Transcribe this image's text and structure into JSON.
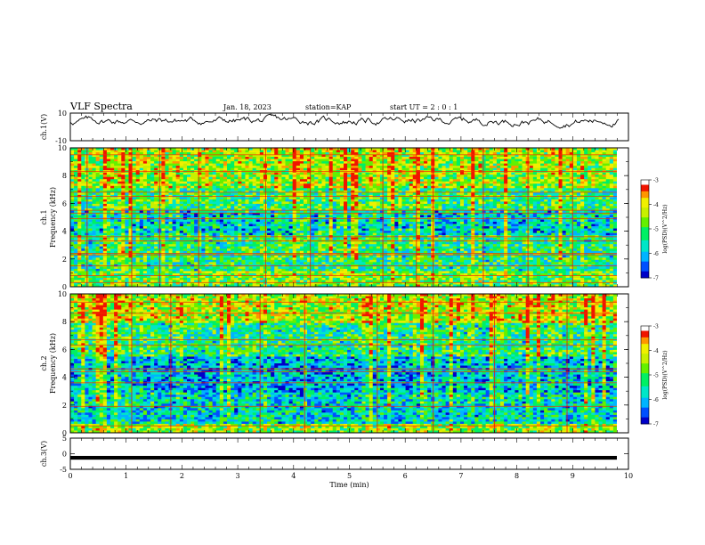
{
  "header": {
    "title": "VLF Spectra",
    "date": "Jan. 18, 2023",
    "station": "station=KAP",
    "start": "start UT =  2 : 0 : 1"
  },
  "chart_data": [
    {
      "type": "line",
      "panel": "ch1-waveform",
      "ylabel": "ch.1(V)",
      "ylim": [
        -10,
        10
      ],
      "yticks": [
        "10",
        "-10"
      ],
      "xlim": [
        0,
        10
      ],
      "series": [
        {
          "values_note": "noisy waveform trace oscillating near 0 to +8 V"
        }
      ]
    },
    {
      "type": "heatmap",
      "panel": "ch1-spectrogram",
      "ylabel": "ch.1 Frequency (kHz)",
      "ylim": [
        0,
        10
      ],
      "yticks": [
        "0",
        "2",
        "4",
        "6",
        "8",
        "10"
      ],
      "xlim": [
        0,
        10
      ],
      "colorbar": {
        "label": "log(PSD)(V^2/Hz)",
        "range": [
          -7,
          -3
        ],
        "ticks": [
          "-3",
          "-4",
          "-5",
          "-6",
          "-7"
        ]
      }
    },
    {
      "type": "heatmap",
      "panel": "ch2-spectrogram",
      "ylabel": "ch.2 Frequency (kHz)",
      "ylim": [
        0,
        10
      ],
      "yticks": [
        "0",
        "2",
        "4",
        "6",
        "8",
        "10"
      ],
      "xlim": [
        0,
        10
      ],
      "colorbar": {
        "label": "log(PSD)(V^2/Hz)",
        "range": [
          -7,
          -3
        ],
        "ticks": [
          "-3",
          "-4",
          "-5",
          "-6",
          "-7"
        ]
      }
    },
    {
      "type": "line",
      "panel": "ch3-waveform",
      "ylabel": "ch.3(V)",
      "ylim": [
        -5,
        5
      ],
      "yticks": [
        "5",
        "0",
        "-5"
      ],
      "xlim": [
        0,
        10
      ],
      "xlabel": "Time (min)",
      "xticks": [
        "0",
        "1",
        "2",
        "3",
        "4",
        "5",
        "6",
        "7",
        "8",
        "9",
        "10"
      ]
    }
  ],
  "colors": {
    "spectrum": [
      "#000080",
      "#0000ff",
      "#00a0ff",
      "#00ffff",
      "#00ff80",
      "#80ff00",
      "#ffff00",
      "#ff8000",
      "#ff0000",
      "#ffffff"
    ]
  }
}
